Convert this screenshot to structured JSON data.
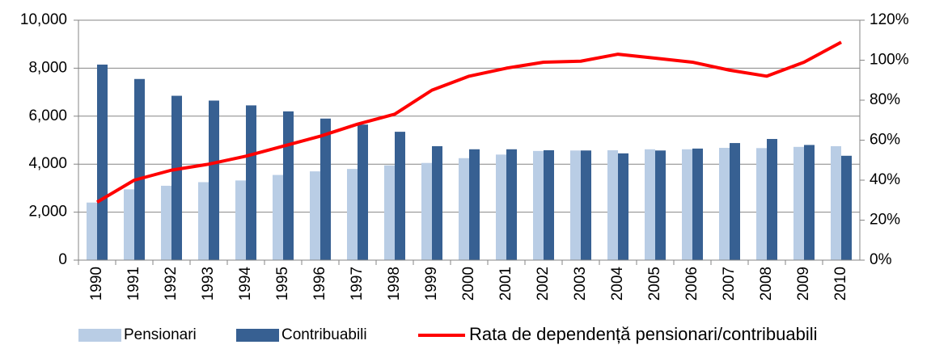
{
  "chart_data": {
    "type": "bar-line",
    "categories": [
      "1990",
      "1991",
      "1992",
      "1993",
      "1994",
      "1995",
      "1996",
      "1997",
      "1998",
      "1999",
      "2000",
      "2001",
      "2002",
      "2003",
      "2004",
      "2005",
      "2006",
      "2007",
      "2008",
      "2009",
      "2010"
    ],
    "series": [
      {
        "name": "Pensionari",
        "type": "bar",
        "color": "#b9cde5",
        "values": [
          2400,
          2950,
          3100,
          3250,
          3320,
          3550,
          3700,
          3800,
          3950,
          4050,
          4250,
          4400,
          4550,
          4570,
          4580,
          4620,
          4620,
          4680,
          4670,
          4720,
          4750
        ]
      },
      {
        "name": "Contribuabili",
        "type": "bar",
        "color": "#376092",
        "values": [
          8150,
          7550,
          6850,
          6650,
          6450,
          6200,
          5900,
          5650,
          5350,
          4750,
          4620,
          4620,
          4580,
          4570,
          4450,
          4570,
          4650,
          4880,
          5050,
          4800,
          4350
        ]
      },
      {
        "name": "Rata de dependență pensionari/contribuabili",
        "type": "line",
        "axis": "y2",
        "color": "#ff0000",
        "values": [
          29,
          40,
          45,
          48,
          52,
          57,
          62,
          68,
          73,
          85,
          92,
          96,
          99,
          99.5,
          103,
          101,
          99,
          95,
          92,
          99,
          109
        ]
      }
    ],
    "ylim": [
      0,
      10000
    ],
    "yticks": [
      0,
      {
        "value": 2000,
        "label": "2,000"
      },
      {
        "value": 4000,
        "label": "4,000"
      },
      {
        "value": 6000,
        "label": "6,000"
      },
      {
        "value": 8000,
        "label": "8,000"
      },
      {
        "value": 10000,
        "label": "10,000"
      }
    ],
    "y2lim": [
      0,
      120
    ],
    "y2ticks": [
      {
        "value": 0,
        "label": "0%"
      },
      {
        "value": 20,
        "label": "20%"
      },
      {
        "value": 40,
        "label": "40%"
      },
      {
        "value": 60,
        "label": "60%"
      },
      {
        "value": 80,
        "label": "80%"
      },
      {
        "value": 100,
        "label": "100%"
      },
      {
        "value": 120,
        "label": "120%"
      }
    ],
    "grid": true,
    "legend": "bottom"
  }
}
